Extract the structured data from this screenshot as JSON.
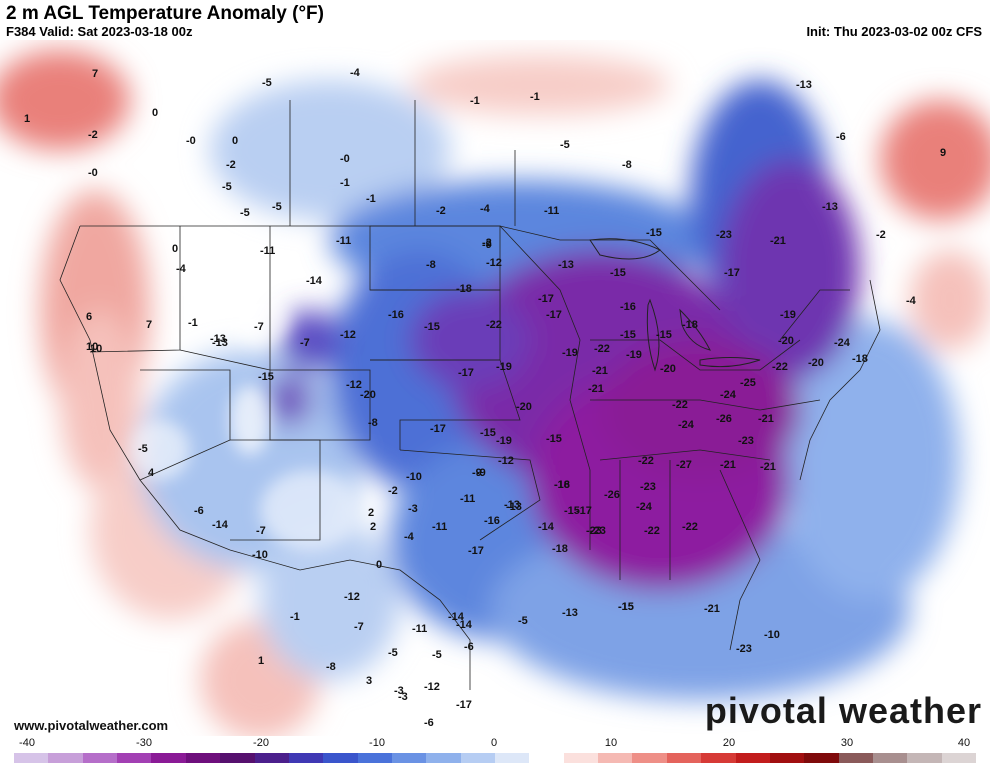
{
  "header": {
    "title": "2 m AGL Temperature Anomaly (°F)",
    "valid": "F384 Valid: Sat 2023-03-18 00z",
    "init": "Init: Thu 2023-03-02 00z CFS"
  },
  "footer": {
    "url": "www.pivotalweather.com",
    "brand": "pivotal weather"
  },
  "colorbar": {
    "ticks": [
      "-40",
      "-30",
      "-20",
      "-10",
      "0",
      "10",
      "20",
      "30",
      "40"
    ],
    "colors": [
      "#d6c3e8",
      "#c79fd9",
      "#b56ec9",
      "#a23fb3",
      "#8a1a96",
      "#6e0f7c",
      "#56106e",
      "#4b1f8c",
      "#3f38b4",
      "#3a55cc",
      "#4a72da",
      "#6a92e4",
      "#8fb1ec",
      "#b6cdf3",
      "#dde7f8",
      "#ffffff",
      "#fbe0dd",
      "#f5b9b3",
      "#ee8f87",
      "#e4635c",
      "#d63a36",
      "#c21c1c",
      "#a10f10",
      "#7f0a0b",
      "#8a5a5a",
      "#a88f8f",
      "#c4b6b6",
      "#dcd4d4"
    ]
  },
  "map": {
    "labels": [
      "7",
      "0",
      "1",
      "-2",
      "-0",
      "0",
      "-0",
      "-2",
      "-5",
      "-0",
      "-1",
      "-5",
      "-5",
      "-4",
      "-1",
      "-2",
      "-1",
      "-1",
      "-5",
      "-8",
      "-5",
      "-13",
      "-6",
      "-11",
      "-2",
      "-4",
      "-11",
      "-15",
      "-23",
      "-21",
      "-13",
      "-2",
      "-4",
      "9",
      "-4",
      "0",
      "-11",
      "-8",
      "-9",
      "-12",
      "-13",
      "-15",
      "-17",
      "-14",
      "-17",
      "-18",
      "-16",
      "-15",
      "-22",
      "-17",
      "-16",
      "-15",
      "-19",
      "-22",
      "-15",
      "-18",
      "-19",
      "-19",
      "-20",
      "-22",
      "-25",
      "-20",
      "-24",
      "-18",
      "10",
      "6",
      "7",
      "-1",
      "-7",
      "-12",
      "-13",
      "10",
      "-15",
      "-7",
      "-20",
      "-17",
      "-19",
      "-20",
      "-21",
      "-20",
      "-21",
      "-22",
      "-26",
      "-27",
      "-23",
      "-24",
      "-24",
      "-21",
      "-21",
      "-22",
      "-22",
      "-22",
      "-23",
      "-24",
      "-26",
      "-23",
      "-18",
      "-17",
      "-18",
      "-14",
      "-15",
      "-13",
      "-12",
      "-9",
      "-10",
      "-11",
      "-13",
      "-15",
      "-16",
      "-19",
      "-23",
      "-21",
      "-13",
      "-15",
      "-5",
      "-12",
      "-9",
      "-7",
      "-3",
      "-2",
      "2",
      "0",
      "-4",
      "-8",
      "-10",
      "-12",
      "-11",
      "-14",
      "-6",
      "-17",
      "-3",
      "-5",
      "-7",
      "-5",
      "-12",
      "-11",
      "-8",
      "-1",
      "-13",
      "-15",
      "-21",
      "-23",
      "-10",
      "-14",
      "-3",
      "-6",
      "1",
      "2",
      "3",
      "4",
      "-5",
      "-6",
      "-14",
      "-16",
      "-15",
      "-17",
      "-17"
    ]
  }
}
